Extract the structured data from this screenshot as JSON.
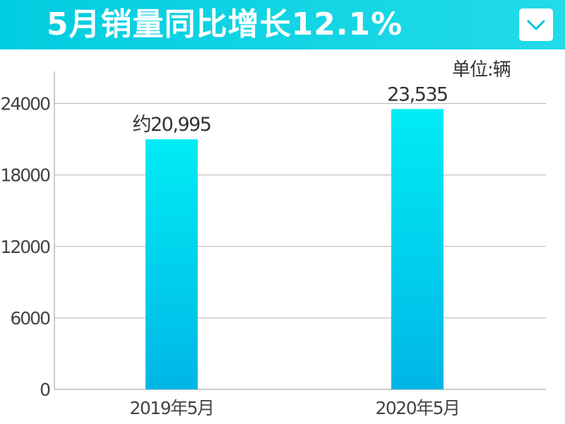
{
  "header": {
    "title": "5月销量同比增长12.1%",
    "dropdown_icon": "chevron-down-icon"
  },
  "colors": {
    "header_bg": "#00cde0",
    "bar_top": "#00ecf4",
    "bar_bottom": "#00b6e6"
  },
  "chart_data": {
    "type": "bar",
    "title": "5月销量同比增长12.1%",
    "unit_label": "单位:辆",
    "categories": [
      "2019年5月",
      "2020年5月"
    ],
    "values": [
      20995,
      23535
    ],
    "data_labels": [
      "约20,995",
      "23,535"
    ],
    "yticks": [
      "0",
      "6000",
      "12000",
      "18000",
      "24000"
    ],
    "ylim": [
      0,
      26700
    ],
    "grid": true,
    "legend": "none"
  }
}
